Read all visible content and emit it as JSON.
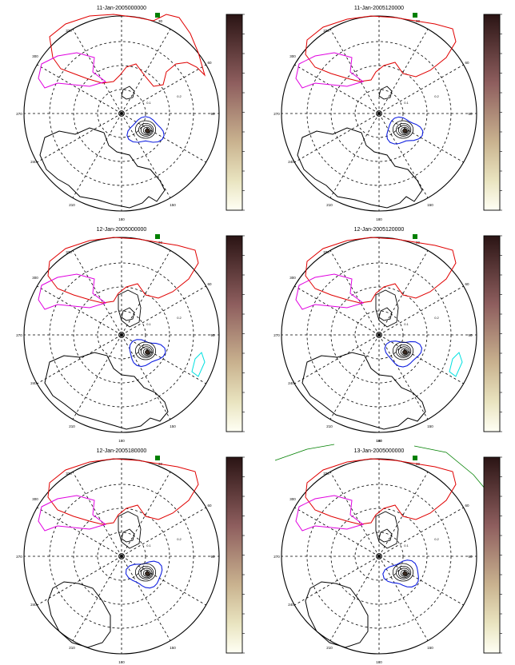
{
  "panels": [
    {
      "title": "11-Jan-2005000000",
      "ring_labels": [
        "0.1",
        "0.2"
      ],
      "angle_labels": {
        "n": "30",
        "nnw": "330",
        "wnw": "300",
        "w": "270",
        "wsw": "240",
        "ssw": "210",
        "s": "180",
        "sse": "150",
        "e": "90",
        "ene": "60"
      },
      "colorbar_ticks": [
        "",
        "",
        "",
        "",
        "",
        "",
        "",
        "",
        "",
        "",
        ""
      ],
      "features": {
        "cyan": false,
        "green_line": false,
        "axis_label": ""
      }
    },
    {
      "title": "11-Jan-2005120000",
      "ring_labels": [
        "0.1",
        "0.2"
      ],
      "angle_labels": {
        "n": "30",
        "nnw": "330",
        "wnw": "300",
        "w": "270",
        "wsw": "240",
        "ssw": "210",
        "s": "180",
        "sse": "150",
        "e": "90",
        "ene": "60"
      },
      "colorbar_ticks": [
        "",
        "",
        "",
        "",
        "",
        "",
        "",
        "",
        "",
        "",
        ""
      ],
      "features": {
        "cyan": false,
        "green_line": false,
        "axis_label": ""
      }
    },
    {
      "title": "12-Jan-2005000000",
      "ring_labels": [
        "0.1",
        "0.2"
      ],
      "angle_labels": {
        "n": "30",
        "nnw": "330",
        "wnw": "300",
        "w": "270",
        "wsw": "240",
        "ssw": "210",
        "s": "180",
        "sse": "150",
        "e": "90",
        "ene": "60"
      },
      "colorbar_ticks": [
        "",
        "",
        "",
        "",
        "",
        "",
        "",
        "",
        "",
        "",
        ""
      ],
      "features": {
        "cyan": true,
        "green_line": false,
        "axis_label": ""
      }
    },
    {
      "title": "12-Jan-2005120000",
      "ring_labels": [
        "0.1",
        "0.2"
      ],
      "angle_labels": {
        "n": "30",
        "nnw": "330",
        "wnw": "300",
        "w": "270",
        "wsw": "240",
        "ssw": "210",
        "s": "180",
        "sse": "150",
        "e": "90",
        "ene": "60"
      },
      "colorbar_ticks": [
        "",
        "",
        "",
        "",
        "",
        "",
        "",
        "",
        "",
        "",
        ""
      ],
      "features": {
        "cyan": true,
        "green_line": false,
        "axis_label": "180"
      }
    },
    {
      "title": "12-Jan-2005180000",
      "ring_labels": [
        "0.1",
        "0.2"
      ],
      "angle_labels": {
        "n": "30",
        "nnw": "330",
        "wnw": "300",
        "w": "270",
        "wsw": "240",
        "ssw": "210",
        "s": "180",
        "sse": "150",
        "e": "90",
        "ene": "60"
      },
      "colorbar_ticks": [
        "",
        "",
        "",
        "",
        "",
        "",
        "",
        "",
        "",
        "",
        ""
      ],
      "features": {
        "cyan": false,
        "green_line": false,
        "axis_label": ""
      }
    },
    {
      "title": "13-Jan-2005000000",
      "ring_labels": [
        "0.1",
        "0.2"
      ],
      "angle_labels": {
        "n": "30",
        "nnw": "330",
        "wnw": "300",
        "w": "270",
        "wsw": "240",
        "ssw": "210",
        "s": "180",
        "sse": "150",
        "e": "90",
        "ene": "60"
      },
      "colorbar_ticks": [
        "",
        "",
        "",
        "",
        "",
        "",
        "",
        "",
        "",
        "",
        ""
      ],
      "features": {
        "cyan": false,
        "green_line": true,
        "axis_label": ""
      }
    }
  ],
  "colors": {
    "red": "#e00000",
    "magenta": "#e000e0",
    "blue": "#1020e0",
    "black": "#000000",
    "cyan": "#00e0e0",
    "green": "#008000",
    "bar_top": "#2a1414",
    "bar_mid": "#9c6a6a",
    "bar_low": "#d8cfa6",
    "bar_bottom": "#fffff4"
  }
}
